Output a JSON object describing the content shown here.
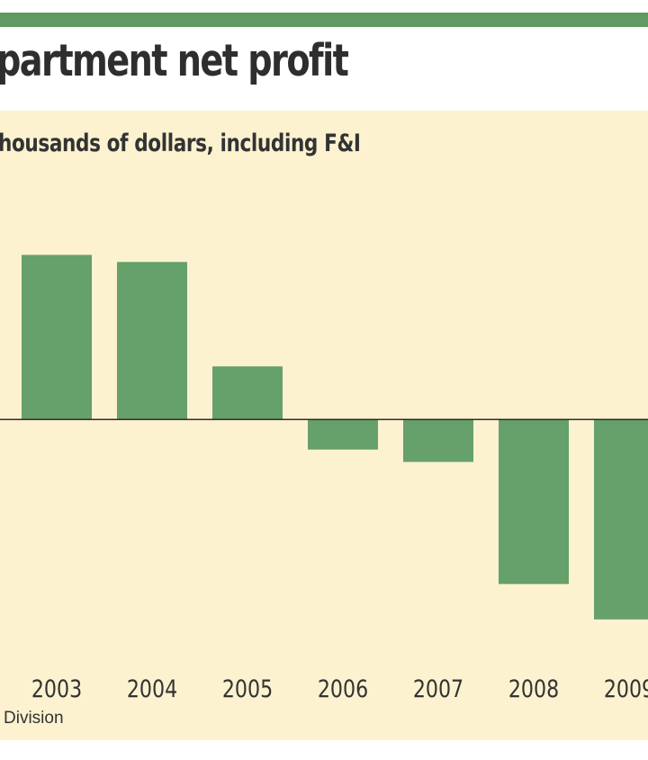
{
  "header": {
    "title": "partment net profit",
    "rule_color": "#5f9a62"
  },
  "panel": {
    "background": "#fcf2d0"
  },
  "chart_data": {
    "type": "bar",
    "title": "partment net profit",
    "subtitle": "housands of dollars, including F&I",
    "categories": [
      "2003",
      "2004",
      "2005",
      "2006",
      "2007",
      "2008",
      "2009"
    ],
    "category_labels": [
      "2003",
      "2004",
      "2005",
      "2006",
      "2007",
      "2008",
      "2009"
    ],
    "series": [
      {
        "name": "Net profit",
        "values": [
          186,
          178,
          60,
          -34,
          -48,
          -186,
          -226
        ],
        "color": "#66a06b"
      }
    ],
    "ylim": [
      -270,
      285
    ],
    "baseline_value": 0,
    "xlabel": "",
    "ylabel": "",
    "grid": false,
    "source": "Division"
  }
}
